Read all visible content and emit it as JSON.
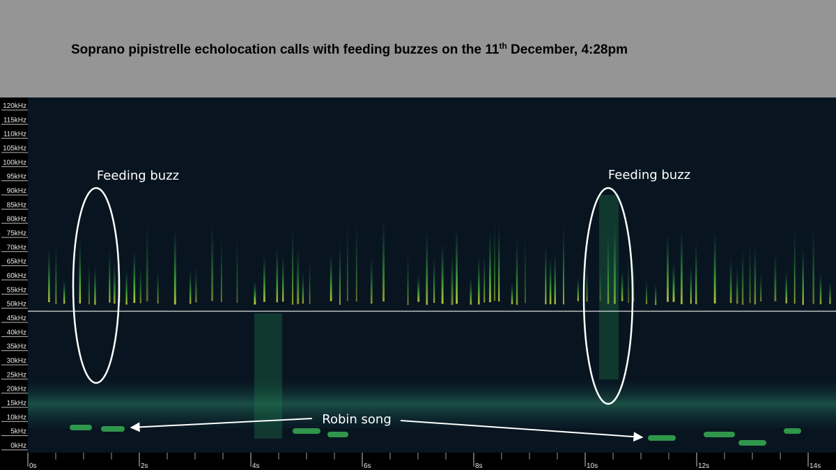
{
  "chart_data": {
    "type": "spectrogram",
    "title": {
      "text": "Soprano pipistrelle echolocation calls with feeding buzzes on the 11",
      "superscript": "th",
      "text_after": " December, 4:28pm"
    },
    "annotations": [
      "Feeding buzz",
      "Feeding buzz",
      "Robin song"
    ],
    "ylim": [
      0,
      120
    ],
    "yticks": [
      {
        "value": 0,
        "label": "0kHz"
      },
      {
        "value": 5,
        "label": "5kHz"
      },
      {
        "value": 10,
        "label": "10kHz"
      },
      {
        "value": 15,
        "label": "15kHz"
      },
      {
        "value": 20,
        "label": "20kHz"
      },
      {
        "value": 25,
        "label": "25kHz"
      },
      {
        "value": 30,
        "label": "30kHz"
      },
      {
        "value": 35,
        "label": "35kHz"
      },
      {
        "value": 40,
        "label": "40kHz"
      },
      {
        "value": 45,
        "label": "45kHz"
      },
      {
        "value": 50,
        "label": "50kHz"
      },
      {
        "value": 55,
        "label": "55kHz"
      },
      {
        "value": 60,
        "label": "60kHz"
      },
      {
        "value": 65,
        "label": "65kHz"
      },
      {
        "value": 70,
        "label": "70kHz"
      },
      {
        "value": 75,
        "label": "75kHz"
      },
      {
        "value": 80,
        "label": "80kHz"
      },
      {
        "value": 85,
        "label": "85kHz"
      },
      {
        "value": 90,
        "label": "90kHz"
      },
      {
        "value": 95,
        "label": "95kHz"
      },
      {
        "value": 100,
        "label": "100kHz"
      },
      {
        "value": 105,
        "label": "105kHz"
      },
      {
        "value": 110,
        "label": "110kHz"
      },
      {
        "value": 115,
        "label": "115kHz"
      },
      {
        "value": 120,
        "label": "120kHz"
      }
    ],
    "xlim": [
      0,
      14.5
    ],
    "xticks": [
      {
        "value": 0,
        "label": "0s"
      },
      {
        "value": 2,
        "label": "2s"
      },
      {
        "value": 4,
        "label": "4s"
      },
      {
        "value": 6,
        "label": "6s"
      },
      {
        "value": 8,
        "label": "8s"
      },
      {
        "value": 10,
        "label": "10s"
      },
      {
        "value": 12,
        "label": "12s"
      },
      {
        "value": 14,
        "label": "14s"
      }
    ]
  }
}
